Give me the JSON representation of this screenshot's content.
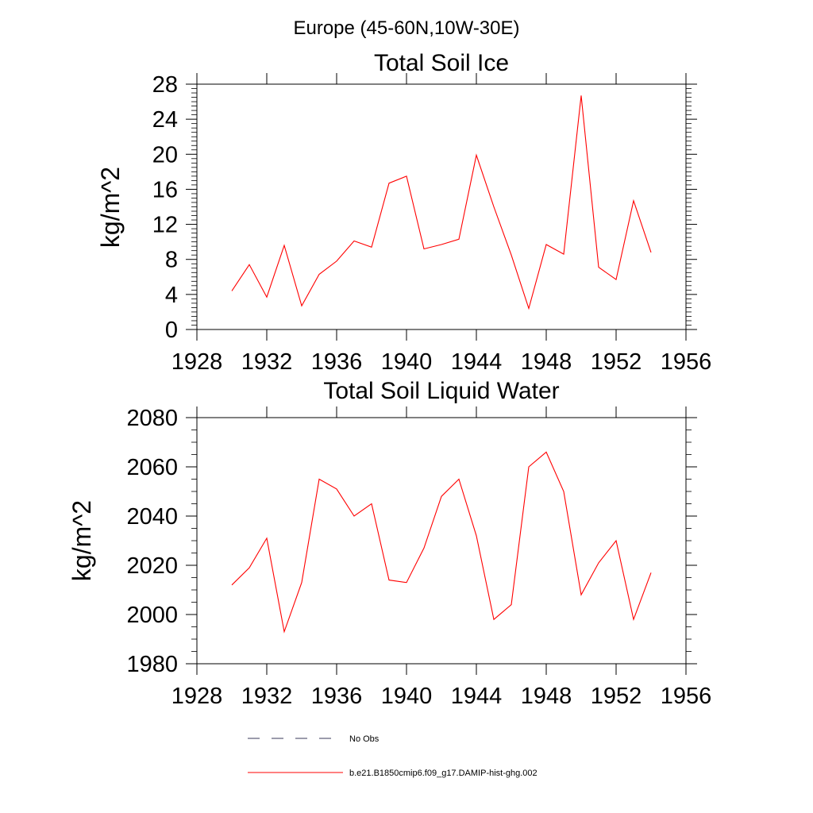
{
  "figure": {
    "suptitle": "Europe (45-60N,10W-30E)"
  },
  "chart_data": [
    {
      "type": "line",
      "title": "Total Soil Ice",
      "xlabel": "",
      "ylabel": "kg/m^2",
      "xlim": [
        1928,
        1956
      ],
      "ylim": [
        0,
        28
      ],
      "x_ticks": [
        1928,
        1932,
        1936,
        1940,
        1944,
        1948,
        1952,
        1956
      ],
      "y_ticks": [
        0,
        4,
        8,
        12,
        16,
        20,
        24,
        28
      ],
      "grid": false,
      "x": [
        1930,
        1931,
        1932,
        1933,
        1934,
        1935,
        1936,
        1937,
        1938,
        1939,
        1940,
        1941,
        1942,
        1943,
        1944,
        1945,
        1946,
        1947,
        1948,
        1949,
        1950,
        1951,
        1952,
        1953,
        1954
      ],
      "series": [
        {
          "name": "b.e21.B1850cmip6.f09_g17.DAMIP-hist-ghg.002",
          "color": "#ff0000",
          "values": [
            4.4,
            7.4,
            3.7,
            9.6,
            2.7,
            6.3,
            7.8,
            10.1,
            9.4,
            16.7,
            17.5,
            9.2,
            9.7,
            10.3,
            19.9,
            14.0,
            8.5,
            2.4,
            9.7,
            8.6,
            26.7,
            7.1,
            5.7,
            14.7,
            8.8
          ]
        }
      ]
    },
    {
      "type": "line",
      "title": "Total Soil Liquid Water",
      "xlabel": "",
      "ylabel": "kg/m^2",
      "xlim": [
        1928,
        1956
      ],
      "ylim": [
        1980,
        2080
      ],
      "x_ticks": [
        1928,
        1932,
        1936,
        1940,
        1944,
        1948,
        1952,
        1956
      ],
      "y_ticks": [
        1980,
        2000,
        2020,
        2040,
        2060,
        2080
      ],
      "grid": false,
      "x": [
        1930,
        1931,
        1932,
        1933,
        1934,
        1935,
        1936,
        1937,
        1938,
        1939,
        1940,
        1941,
        1942,
        1943,
        1944,
        1945,
        1946,
        1947,
        1948,
        1949,
        1950,
        1951,
        1952,
        1953,
        1954
      ],
      "series": [
        {
          "name": "b.e21.B1850cmip6.f09_g17.DAMIP-hist-ghg.002",
          "color": "#ff0000",
          "values": [
            2012,
            2019,
            2031,
            1993,
            2013,
            2055,
            2051,
            2040,
            2045,
            2014,
            2013,
            2027,
            2048,
            2055,
            2032,
            1998,
            2004,
            2060,
            2066,
            2050,
            2008,
            2021,
            2030,
            1998,
            2017
          ]
        }
      ]
    }
  ],
  "legend": {
    "placement": "bottom",
    "items": [
      {
        "label": "No Obs",
        "color": "#3a3a5a",
        "style": "dashed"
      },
      {
        "label": "b.e21.B1850cmip6.f09_g17.DAMIP-hist-ghg.002",
        "color": "#ff0000",
        "style": "solid"
      }
    ]
  }
}
